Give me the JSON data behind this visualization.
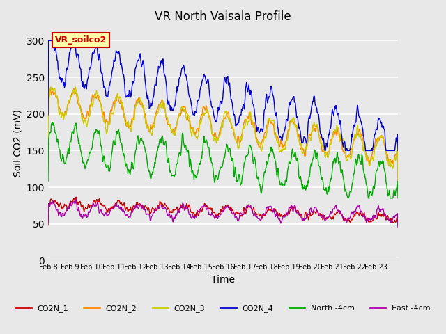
{
  "title": "VR North Vaisala Profile",
  "xlabel": "Time",
  "ylabel": "Soil CO2 (mV)",
  "background_color": "#e8e8e8",
  "plot_bg_color": "#e8e8e8",
  "ylim": [
    0,
    320
  ],
  "yticks": [
    0,
    50,
    100,
    150,
    200,
    250,
    300
  ],
  "xtick_labels": [
    "Feb 8",
    "Feb 9",
    "Feb 10",
    "Feb 11",
    "Feb 12",
    "Feb 13",
    "Feb 14",
    "Feb 15",
    "Feb 16",
    "Feb 17",
    "Feb 18",
    "Feb 19",
    "Feb 20",
    "Feb 21",
    "Feb 22",
    "Feb 23"
  ],
  "legend_entries": [
    "CO2N_1",
    "CO2N_2",
    "CO2N_3",
    "CO2N_4",
    "North -4cm",
    "East -4cm"
  ],
  "legend_colors": [
    "#cc0000",
    "#ff8800",
    "#cccc00",
    "#0000cc",
    "#00aa00",
    "#aa00aa"
  ],
  "annotation_text": "VR_soilco2",
  "annotation_box_color": "#ffffaa",
  "annotation_border_color": "#cc0000",
  "figsize": [
    6.4,
    4.8
  ],
  "dpi": 100,
  "n_days": 16,
  "n_per_day": 48
}
